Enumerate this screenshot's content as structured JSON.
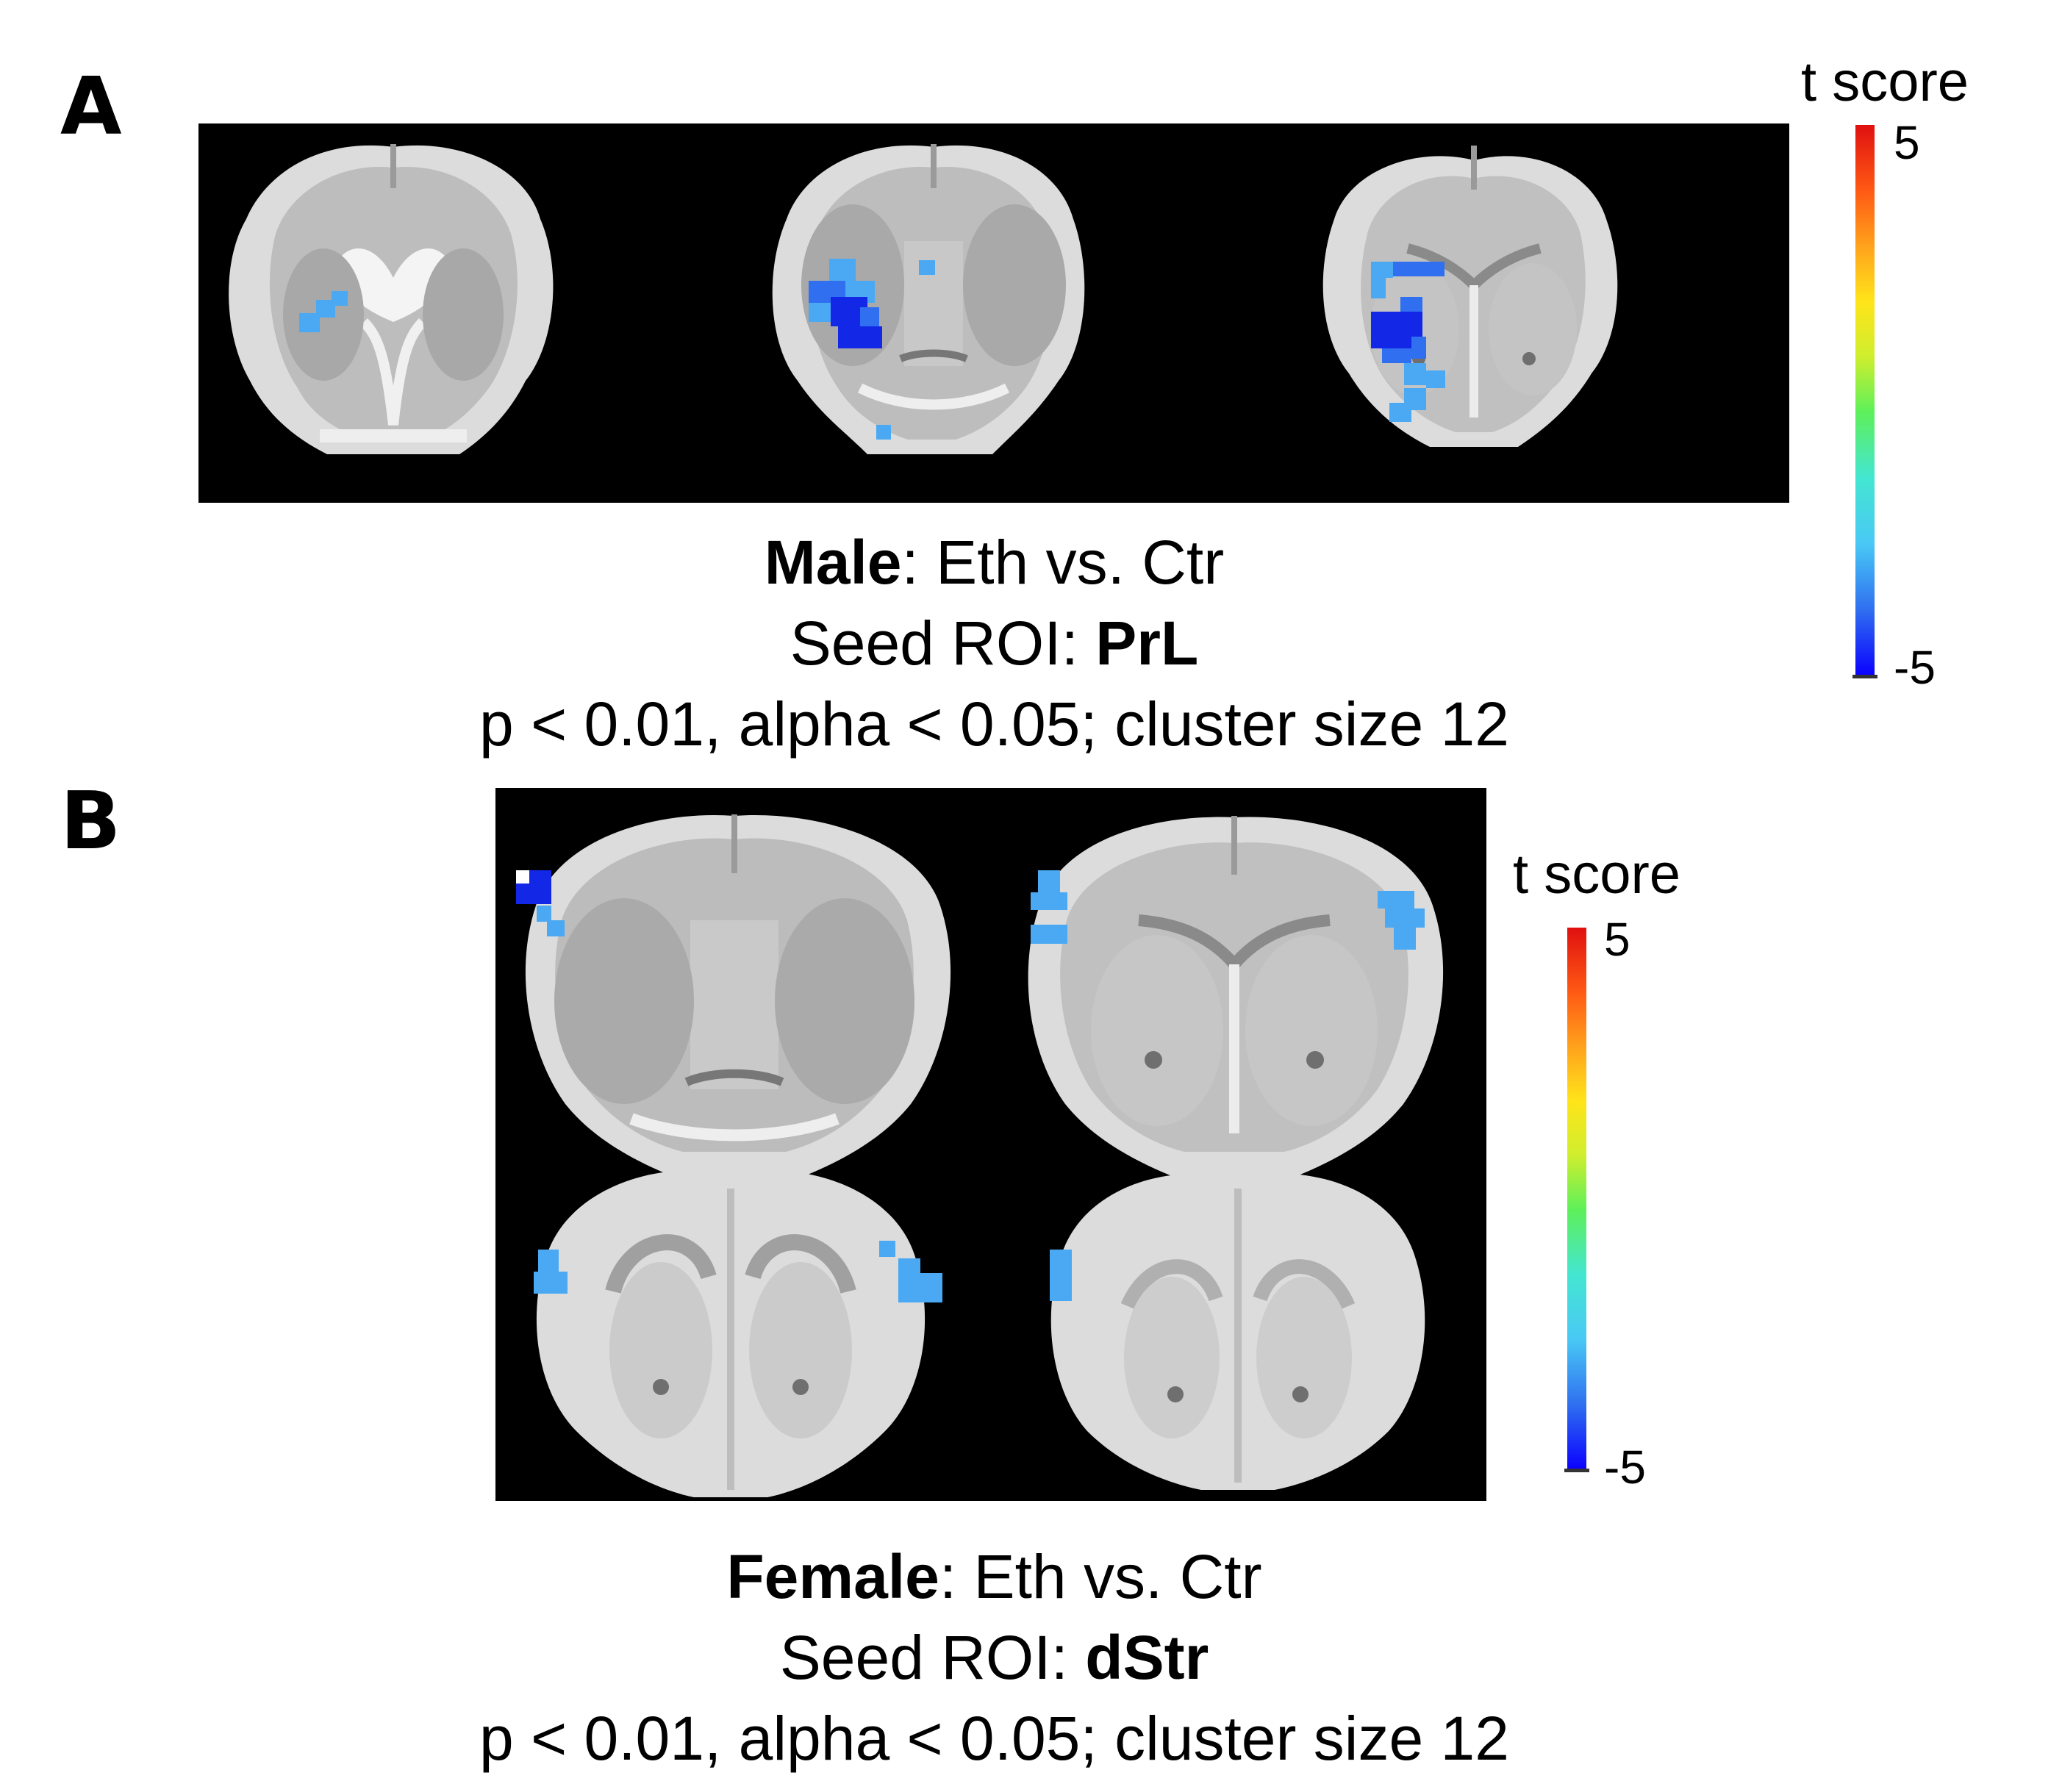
{
  "figure": {
    "panel_a": {
      "label": "A",
      "caption": {
        "group": "Male",
        "group_suffix": ": Eth vs. Ctr",
        "seed_prefix": "Seed ROI: ",
        "seed": "PrL",
        "threshold": "p < 0.01, alpha < 0.05; cluster size 12"
      },
      "colorbar": {
        "title": "t score",
        "max_label": "5",
        "min_label": "-5"
      }
    },
    "panel_b": {
      "label": "B",
      "caption": {
        "group": "Female",
        "group_suffix": ": Eth vs. Ctr",
        "seed_prefix": "Seed ROI: ",
        "seed": "dStr",
        "threshold": "p < 0.01, alpha < 0.05; cluster size 12"
      },
      "colorbar": {
        "title": "t score",
        "max_label": "5",
        "min_label": "-5"
      }
    }
  },
  "colors": {
    "background": "#000000",
    "tissue": "#c9c9c9",
    "cortex": "#dcdcdc",
    "ventricle": "#7e7e7e",
    "cluster_light": "#4aa9f2",
    "cluster_mid": "#2f6ff0",
    "cluster_dark": "#1327e6",
    "colormap": [
      "#0a00ff",
      "#2f6ff0",
      "#49c8f5",
      "#44e6d2",
      "#5ef05a",
      "#cfee2e",
      "#ffe41a",
      "#ffa21c",
      "#ff5a14",
      "#e01010"
    ]
  }
}
